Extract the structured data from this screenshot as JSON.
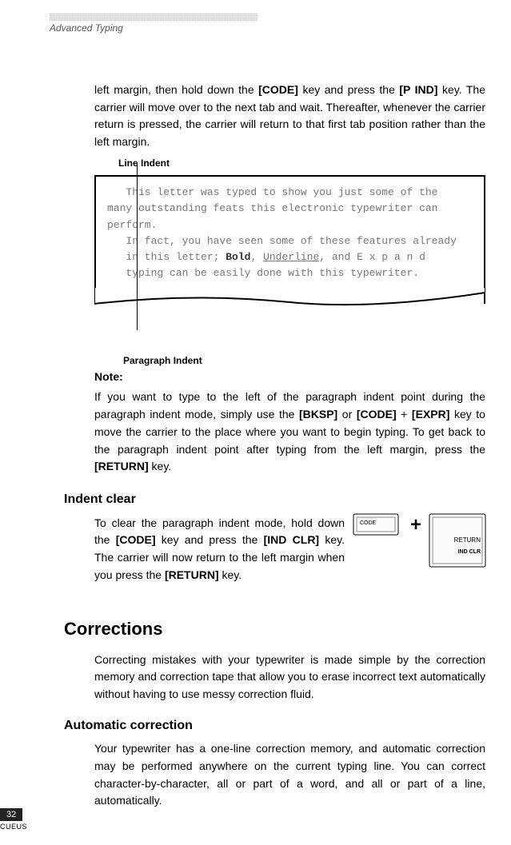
{
  "running_head": "Advanced Typing",
  "intro_para": "left margin, then hold down the [CODE] key and press the [P IND] key. The carrier will move over to the next tab and wait. Thereafter, whenever the carrier return is pressed, the carrier will return to that first tab position rather than the left margin.",
  "line_indent_label": "Line Indent",
  "sample_l1": "   This letter was typed to show you just some of the",
  "sample_l2": "many outstanding feats this electronic typewriter can",
  "sample_l3": "perform.",
  "sample_l4": "   In fact, you have seen some of these features already",
  "sample_l5_pre": "   in this letter; ",
  "sample_l5_bold": "Bold",
  "sample_l5_mid": ", ",
  "sample_l5_und": "Underline",
  "sample_l5_post": ", and E x p a n d",
  "sample_l6": "   typing can be easily done with this typewriter.",
  "para_indent_label": "Paragraph Indent",
  "note_label": "Note:",
  "note_para": "If you want to type to the left of the paragraph indent point during the paragraph indent mode, simply use the [BKSP] or [CODE] + [EXPR] key to move the carrier to the place where you want to begin typing. To get back to the paragraph indent point after typing from the left margin, press the [RETURN] key.",
  "indent_clear_h": "Indent clear",
  "indent_clear_p": "To clear the paragraph indent mode, hold down the [CODE] key and press the [IND CLR] key. The carrier will now return to the left margin when you press the [RETURN] key.",
  "corrections_h": "Corrections",
  "corrections_p": "Correcting mistakes with your typewriter is made simple by the correction memory and correction tape that allow you to erase incorrect text automatically without having to use messy correction fluid.",
  "autocorr_h": "Automatic correction",
  "autocorr_p": "Your typewriter has a one-line correction memory, and automatic correction may be performed anywhere on the current typing line. You can correct character-by-character, all or part of a word, and all or part of a line, automatically.",
  "keydiagram": {
    "code": "CODE",
    "plus": "+",
    "return": "RETURN",
    "indclr": "IND CLR"
  },
  "page_number": "32",
  "footer_code": "CUEUS",
  "colors": {
    "text": "#000000",
    "muted": "#777777",
    "bg": "#ffffff",
    "pagenum_bg": "#222222"
  }
}
